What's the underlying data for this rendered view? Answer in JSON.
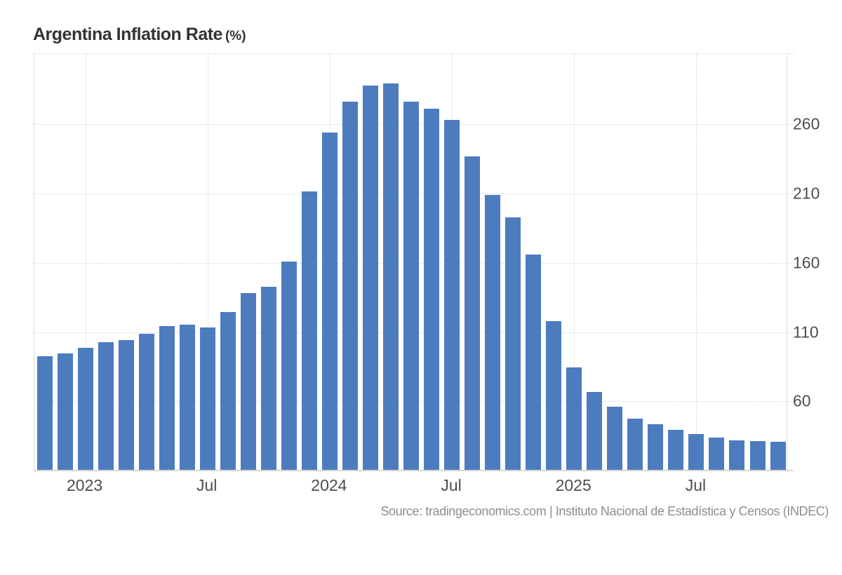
{
  "title": {
    "main": "Argentina Inflation Rate",
    "unit": "(%)"
  },
  "source": "Source: tradingeconomics.com | Instituto Nacional de Estadística y Censos (INDEC)",
  "colors": {
    "bar": "#4d7cbe",
    "grid": "#d7d7d7",
    "frame": "#dcdcdc",
    "axis_line": "#d6d6d6",
    "axis_text": "#4d4d4d",
    "title_text": "#333333",
    "source_text": "#8e8e8e"
  },
  "chart_data": {
    "type": "bar",
    "title": "Argentina Inflation Rate (%)",
    "xlabel": "",
    "ylabel": "Inflation Rate (%)",
    "grid": true,
    "legend_position": "none",
    "ylim": [
      10.5,
      311.3
    ],
    "y_ticks": [
      60,
      110,
      160,
      210,
      260
    ],
    "x": [
      "Nov 2022",
      "Dec 2022",
      "Jan 2023",
      "Feb 2023",
      "Mar 2023",
      "Apr 2023",
      "May 2023",
      "Jun 2023",
      "Jul 2023",
      "Aug 2023",
      "Sep 2023",
      "Oct 2023",
      "Nov 2023",
      "Dec 2023",
      "Jan 2024",
      "Feb 2024",
      "Mar 2024",
      "Apr 2024",
      "May 2024",
      "Jun 2024",
      "Jul 2024",
      "Aug 2024",
      "Sep 2024",
      "Oct 2024",
      "Nov 2024",
      "Dec 2024",
      "Jan 2025",
      "Feb 2025",
      "Mar 2025",
      "Apr 2025",
      "May 2025",
      "Jun 2025",
      "Jul 2025",
      "Aug 2025",
      "Sep 2025",
      "Oct 2025",
      "Nov 2025"
    ],
    "values": [
      92.4,
      94.8,
      98.8,
      102.5,
      104.3,
      108.8,
      114.2,
      115.6,
      113.4,
      124.4,
      138.3,
      142.7,
      160.9,
      211.4,
      254.2,
      276.2,
      287.9,
      289.4,
      276.4,
      271.5,
      263.4,
      236.7,
      209.0,
      193.0,
      166.0,
      117.8,
      84.5,
      66.9,
      55.9,
      47.3,
      43.5,
      39.4,
      36.6,
      33.6,
      31.8,
      31.3,
      31.0
    ],
    "x_tick_labels": [
      {
        "label": "2023",
        "index": 2
      },
      {
        "label": "Jul",
        "index": 8
      },
      {
        "label": "2024",
        "index": 14
      },
      {
        "label": "Jul",
        "index": 20
      },
      {
        "label": "2025",
        "index": 26
      },
      {
        "label": "Jul",
        "index": 32
      }
    ]
  }
}
